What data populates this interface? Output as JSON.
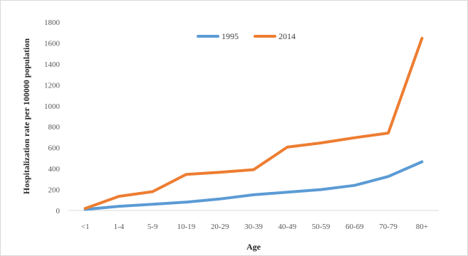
{
  "chart_data": {
    "type": "line",
    "categories": [
      "<1",
      "1-4",
      "5-9",
      "10-19",
      "20-29",
      "30-39",
      "40-49",
      "50-59",
      "60-69",
      "70-79",
      "80+"
    ],
    "series": [
      {
        "name": "1995",
        "color": "#5b9bd5",
        "values": [
          10,
          40,
          60,
          80,
          110,
          150,
          175,
          200,
          240,
          325,
          465
        ]
      },
      {
        "name": "2014",
        "color": "#ed7d31",
        "values": [
          20,
          135,
          180,
          345,
          365,
          390,
          605,
          645,
          695,
          740,
          1645
        ]
      }
    ],
    "ylim": [
      0,
      1800
    ],
    "yticks": [
      0,
      200,
      400,
      600,
      800,
      1000,
      1200,
      1400,
      1600,
      1800
    ],
    "xlabel": "Age",
    "ylabel": "Hospitalization rate per 100000 population",
    "legend_position": "top",
    "grid": false
  }
}
